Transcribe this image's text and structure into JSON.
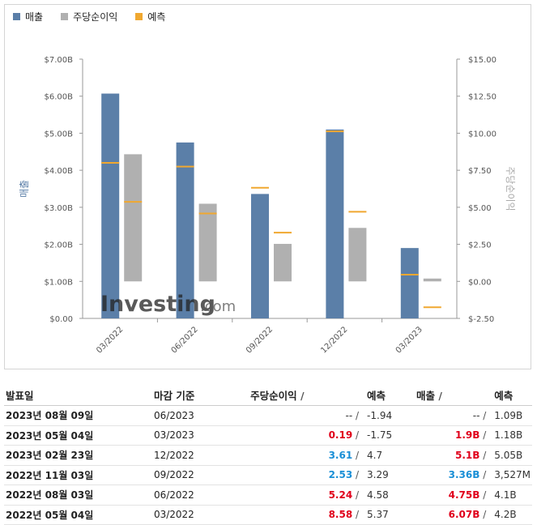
{
  "legend": [
    {
      "label": "매출",
      "color": "#5b7fa8"
    },
    {
      "label": "주당순이익",
      "color": "#b0b0b0"
    },
    {
      "label": "예측",
      "color": "#f0a830"
    }
  ],
  "chart_data": {
    "type": "bar",
    "categories": [
      "03/2022",
      "06/2022",
      "09/2022",
      "12/2022",
      "03/2023"
    ],
    "left_axis": {
      "label": "매출",
      "ticks": [
        "$0.00",
        "$1.00B",
        "$2.00B",
        "$3.00B",
        "$4.00B",
        "$5.00B",
        "$6.00B",
        "$7.00B"
      ],
      "ylim": [
        0,
        7
      ]
    },
    "right_axis": {
      "label": "주당순이익",
      "ticks": [
        "$-2.50",
        "$0.00",
        "$2.50",
        "$5.00",
        "$7.50",
        "$10.00",
        "$12.50",
        "$15.00"
      ],
      "ylim": [
        -2.5,
        15
      ]
    },
    "series": [
      {
        "name": "매출",
        "axis": "left",
        "color": "#5b7fa8",
        "values": [
          6.07,
          4.75,
          3.36,
          5.1,
          1.9
        ],
        "forecast": [
          4.2,
          4.1,
          3.527,
          5.05,
          1.18
        ]
      },
      {
        "name": "주당순이익",
        "axis": "right",
        "color": "#b0b0b0",
        "values": [
          8.58,
          5.24,
          2.53,
          3.61,
          0.19
        ],
        "forecast": [
          5.37,
          4.58,
          3.29,
          4.7,
          -1.75
        ]
      }
    ],
    "forecast_color": "#f0a830",
    "watermark": "Investing.com"
  },
  "table": {
    "headers": {
      "date": "발표일",
      "period": "마감 기준",
      "eps": "주당순이익",
      "eps_fc": "예측",
      "rev": "매출",
      "rev_fc": "예측",
      "slash": "/"
    },
    "rows": [
      {
        "date": "2023년 08월 09일",
        "period": "06/2023",
        "eps": "--",
        "eps_style": "plain",
        "eps_fc": "-1.94",
        "rev": "--",
        "rev_style": "plain",
        "rev_fc": "1.09B"
      },
      {
        "date": "2023년 05월 04일",
        "period": "03/2023",
        "eps": "0.19",
        "eps_style": "red",
        "eps_fc": "-1.75",
        "rev": "1.9B",
        "rev_style": "red",
        "rev_fc": "1.18B"
      },
      {
        "date": "2023년 02월 23일",
        "period": "12/2022",
        "eps": "3.61",
        "eps_style": "blue",
        "eps_fc": "4.7",
        "rev": "5.1B",
        "rev_style": "red",
        "rev_fc": "5.05B"
      },
      {
        "date": "2022년 11월 03일",
        "period": "09/2022",
        "eps": "2.53",
        "eps_style": "blue",
        "eps_fc": "3.29",
        "rev": "3.36B",
        "rev_style": "blue",
        "rev_fc": "3,527M"
      },
      {
        "date": "2022년 08월 03일",
        "period": "06/2022",
        "eps": "5.24",
        "eps_style": "red",
        "eps_fc": "4.58",
        "rev": "4.75B",
        "rev_style": "red",
        "rev_fc": "4.1B"
      },
      {
        "date": "2022년 05월 04일",
        "period": "03/2022",
        "eps": "8.58",
        "eps_style": "red",
        "eps_fc": "5.37",
        "rev": "6.07B",
        "rev_style": "red",
        "rev_fc": "4.2B"
      }
    ]
  }
}
